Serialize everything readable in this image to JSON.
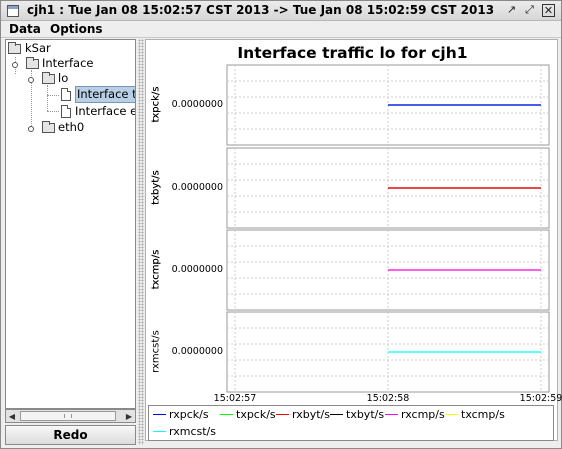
{
  "window": {
    "title": "cjh1 : Tue Jan 08 15:02:57 CST 2013 -> Tue Jan 08 15:02:59 CST 2013",
    "controls": [
      "restore-icon",
      "maximize-icon",
      "close-icon"
    ],
    "close_glyph": "✕",
    "restore_glyph": "↗",
    "maximize_glyph": "⤢"
  },
  "menubar": {
    "items": [
      "Data",
      "Options"
    ]
  },
  "tree": {
    "root": "kSar",
    "interface": "Interface",
    "lo": "lo",
    "traffic": "Interface tra",
    "errors": "Interface err",
    "eth0": "eth0"
  },
  "scroll": {
    "left_arrow": "◀",
    "right_arrow": "▶"
  },
  "redo_label": "Redo",
  "chart_data": {
    "type": "line",
    "title": "Interface traffic lo for cjh1",
    "x": [
      "15:02:57",
      "15:02:58",
      "15:02:59"
    ],
    "panels": [
      {
        "ylabel": "txpck/s",
        "ylabel_overlay": "rxpck/s",
        "ytick": "0.0000000",
        "series": [
          {
            "name": "rxpck/s",
            "color": "#0000ff",
            "x": [
              "15:02:58",
              "15:02:59"
            ],
            "values": [
              0,
              0
            ]
          },
          {
            "name": "txpck/s",
            "color": "#00ff00",
            "x": [
              "15:02:58",
              "15:02:59"
            ],
            "values": [
              0,
              0
            ]
          }
        ]
      },
      {
        "ylabel": "txbyt/s",
        "ylabel_overlay": "rxbyt/s",
        "ytick": "0.0000000",
        "series": [
          {
            "name": "rxbyt/s",
            "color": "#ff0000",
            "x": [
              "15:02:58",
              "15:02:59"
            ],
            "values": [
              0,
              0
            ]
          },
          {
            "name": "txbyt/s",
            "color": "#000000",
            "x": [
              "15:02:58",
              "15:02:59"
            ],
            "values": [
              0,
              0
            ]
          }
        ]
      },
      {
        "ylabel": "txcmp/s",
        "ylabel_overlay": "rxcmp/s",
        "ytick": "0.0000000",
        "series": [
          {
            "name": "rxcmp/s",
            "color": "#ff00ff",
            "x": [
              "15:02:58",
              "15:02:59"
            ],
            "values": [
              0,
              0
            ]
          },
          {
            "name": "txcmp/s",
            "color": "#ffff00",
            "x": [
              "15:02:58",
              "15:02:59"
            ],
            "values": [
              0,
              0
            ]
          }
        ]
      },
      {
        "ylabel": "rxmcst/s",
        "ytick": "0.0000000",
        "series": [
          {
            "name": "rxmcst/s",
            "color": "#00ffff",
            "x": [
              "15:02:58",
              "15:02:59"
            ],
            "values": [
              0,
              0
            ]
          }
        ]
      }
    ],
    "legend": [
      {
        "name": "rxpck/s",
        "color": "#0000ff"
      },
      {
        "name": "txpck/s",
        "color": "#00ff00"
      },
      {
        "name": "rxbyt/s",
        "color": "#ff0000"
      },
      {
        "name": "txbyt/s",
        "color": "#000000"
      },
      {
        "name": "rxcmp/s",
        "color": "#ff00ff"
      },
      {
        "name": "txcmp/s",
        "color": "#ffff00"
      },
      {
        "name": "rxmcst/s",
        "color": "#00ffff"
      }
    ],
    "grid": true,
    "legend_position": "bottom"
  }
}
